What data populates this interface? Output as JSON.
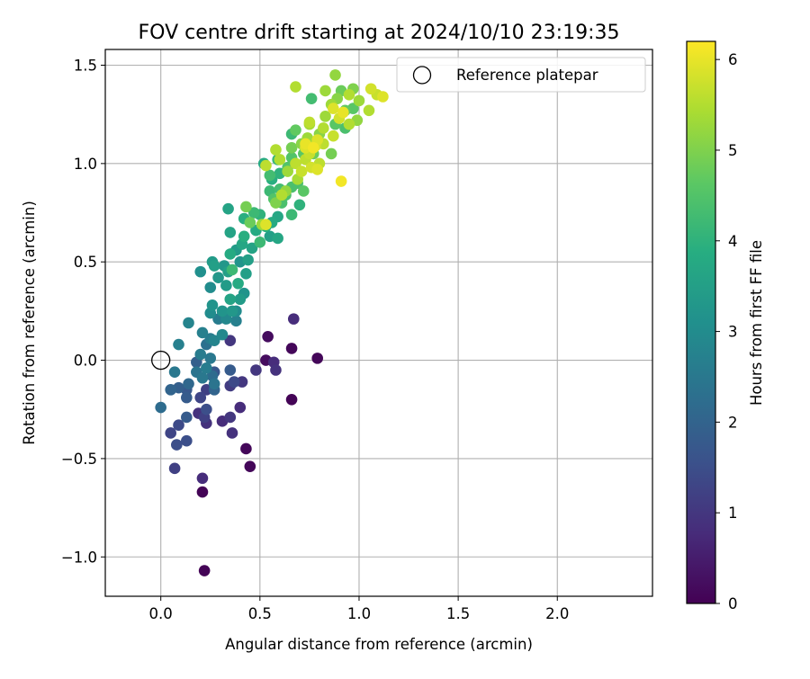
{
  "chart_data": {
    "type": "scatter",
    "title": "FOV centre drift starting at 2024/10/10 23:19:35",
    "xlabel": "Angular distance from reference (arcmin)",
    "ylabel": "Rotation from reference (arcmin)",
    "xlim": [
      -0.28,
      2.48
    ],
    "ylim": [
      -1.2,
      1.58
    ],
    "xticks": [
      0.0,
      0.5,
      1.0,
      1.5,
      2.0
    ],
    "xtick_labels": [
      "0.0",
      "0.5",
      "1.0",
      "1.5",
      "2.0"
    ],
    "yticks": [
      -1.0,
      -0.5,
      0.0,
      0.5,
      1.0,
      1.5
    ],
    "ytick_labels": [
      "−1.0",
      "−0.5",
      "0.0",
      "0.5",
      "1.0",
      "1.5"
    ],
    "grid": true,
    "legend": {
      "position": "top-right",
      "entries": [
        "Reference platepar"
      ]
    },
    "reference_point": {
      "x": 0.0,
      "y": 0.0,
      "label": "Reference platepar"
    },
    "colorbar": {
      "label": "Hours from first FF file",
      "colormap": "viridis",
      "range": [
        0,
        6.2
      ],
      "ticks": [
        0,
        1,
        2,
        3,
        4,
        5,
        6
      ],
      "tick_labels": [
        "0",
        "1",
        "2",
        "3",
        "4",
        "5",
        "6"
      ]
    },
    "points_xyc": [
      [
        0.22,
        -1.07,
        0.05
      ],
      [
        0.21,
        -0.67,
        0.05
      ],
      [
        0.21,
        -0.6,
        0.8
      ],
      [
        0.07,
        -0.55,
        1.2
      ],
      [
        0.45,
        -0.54,
        0.1
      ],
      [
        0.43,
        -0.45,
        0.1
      ],
      [
        0.08,
        -0.43,
        1.5
      ],
      [
        0.13,
        -0.41,
        1.5
      ],
      [
        0.05,
        -0.37,
        1.3
      ],
      [
        0.36,
        -0.37,
        0.9
      ],
      [
        0.09,
        -0.33,
        1.4
      ],
      [
        0.23,
        -0.32,
        0.9
      ],
      [
        0.31,
        -0.31,
        0.8
      ],
      [
        0.22,
        -0.29,
        1.2
      ],
      [
        0.35,
        -0.29,
        1.0
      ],
      [
        0.13,
        -0.29,
        1.8
      ],
      [
        0.19,
        -0.27,
        0.9
      ],
      [
        0.23,
        -0.25,
        1.5
      ],
      [
        0.4,
        -0.24,
        0.8
      ],
      [
        0.0,
        -0.24,
        2.2
      ],
      [
        0.66,
        -0.2,
        0.05
      ],
      [
        0.13,
        -0.19,
        1.8
      ],
      [
        0.2,
        -0.19,
        1.3
      ],
      [
        0.05,
        -0.15,
        2.0
      ],
      [
        0.13,
        -0.15,
        1.7
      ],
      [
        0.23,
        -0.15,
        1.2
      ],
      [
        0.27,
        -0.15,
        2.0
      ],
      [
        0.09,
        -0.14,
        1.9
      ],
      [
        0.35,
        -0.13,
        1.1
      ],
      [
        0.14,
        -0.12,
        2.1
      ],
      [
        0.27,
        -0.12,
        2.4
      ],
      [
        0.41,
        -0.11,
        1.0
      ],
      [
        0.37,
        -0.11,
        1.4
      ],
      [
        0.21,
        -0.09,
        2.5
      ],
      [
        0.26,
        -0.08,
        2.2
      ],
      [
        0.07,
        -0.06,
        2.5
      ],
      [
        0.18,
        -0.06,
        2.4
      ],
      [
        0.27,
        -0.06,
        1.7
      ],
      [
        0.35,
        -0.05,
        1.8
      ],
      [
        0.48,
        -0.05,
        1.0
      ],
      [
        0.58,
        -0.05,
        0.9
      ],
      [
        0.23,
        -0.04,
        2.6
      ],
      [
        0.57,
        -0.01,
        0.8
      ],
      [
        0.18,
        -0.01,
        1.9
      ],
      [
        0.53,
        0.0,
        0.2
      ],
      [
        0.25,
        0.01,
        2.5
      ],
      [
        0.79,
        0.01,
        0.1
      ],
      [
        0.2,
        0.03,
        2.6
      ],
      [
        0.66,
        0.06,
        0.1
      ],
      [
        0.09,
        0.08,
        2.7
      ],
      [
        0.23,
        0.08,
        2.3
      ],
      [
        0.27,
        0.1,
        2.8
      ],
      [
        0.35,
        0.1,
        1.0
      ],
      [
        0.54,
        0.12,
        0.2
      ],
      [
        0.25,
        0.11,
        2.6
      ],
      [
        0.31,
        0.13,
        2.9
      ],
      [
        0.21,
        0.14,
        2.7
      ],
      [
        0.14,
        0.19,
        2.8
      ],
      [
        0.67,
        0.21,
        0.8
      ],
      [
        0.29,
        0.21,
        2.6
      ],
      [
        0.33,
        0.21,
        2.9
      ],
      [
        0.38,
        0.2,
        2.7
      ],
      [
        0.25,
        0.24,
        3.0
      ],
      [
        0.31,
        0.25,
        3.2
      ],
      [
        0.38,
        0.25,
        3.0
      ],
      [
        0.26,
        0.28,
        3.2
      ],
      [
        0.36,
        0.25,
        3.3
      ],
      [
        0.4,
        0.31,
        3.4
      ],
      [
        0.35,
        0.31,
        3.6
      ],
      [
        0.42,
        0.34,
        3.2
      ],
      [
        0.25,
        0.37,
        3.0
      ],
      [
        0.33,
        0.38,
        3.4
      ],
      [
        0.39,
        0.39,
        3.8
      ],
      [
        0.29,
        0.42,
        3.3
      ],
      [
        0.2,
        0.45,
        3.1
      ],
      [
        0.34,
        0.45,
        3.5
      ],
      [
        0.43,
        0.44,
        3.5
      ],
      [
        0.36,
        0.46,
        4.2
      ],
      [
        0.27,
        0.48,
        3.5
      ],
      [
        0.32,
        0.48,
        3.3
      ],
      [
        0.26,
        0.5,
        3.4
      ],
      [
        0.4,
        0.5,
        3.2
      ],
      [
        0.44,
        0.51,
        3.5
      ],
      [
        0.35,
        0.54,
        3.8
      ],
      [
        0.38,
        0.56,
        3.4
      ],
      [
        0.46,
        0.57,
        3.6
      ],
      [
        0.41,
        0.59,
        3.7
      ],
      [
        0.5,
        0.6,
        4.2
      ],
      [
        0.55,
        0.63,
        3.5
      ],
      [
        0.42,
        0.63,
        3.9
      ],
      [
        0.59,
        0.62,
        3.7
      ],
      [
        0.35,
        0.65,
        3.6
      ],
      [
        0.48,
        0.66,
        3.8
      ],
      [
        0.53,
        0.68,
        3.9
      ],
      [
        0.56,
        0.7,
        3.8
      ],
      [
        0.45,
        0.7,
        4.8
      ],
      [
        0.42,
        0.72,
        3.9
      ],
      [
        0.59,
        0.73,
        3.7
      ],
      [
        0.5,
        0.74,
        4.0
      ],
      [
        0.66,
        0.74,
        4.2
      ],
      [
        0.47,
        0.75,
        4.2
      ],
      [
        0.34,
        0.77,
        3.6
      ],
      [
        0.43,
        0.78,
        4.9
      ],
      [
        0.7,
        0.79,
        4.0
      ],
      [
        0.61,
        0.8,
        4.4
      ],
      [
        0.57,
        0.82,
        4.5
      ],
      [
        0.63,
        0.84,
        4.4
      ],
      [
        0.55,
        0.86,
        4.2
      ],
      [
        0.72,
        0.86,
        4.6
      ],
      [
        0.6,
        0.87,
        4.3
      ],
      [
        0.66,
        0.88,
        4.4
      ],
      [
        0.69,
        0.9,
        4.4
      ],
      [
        0.56,
        0.92,
        3.9
      ],
      [
        0.55,
        0.94,
        4.3
      ],
      [
        0.6,
        0.95,
        4.0
      ],
      [
        0.64,
        0.98,
        4.5
      ],
      [
        0.52,
        1.0,
        3.8
      ],
      [
        0.59,
        1.02,
        4.1
      ],
      [
        0.66,
        1.03,
        4.5
      ],
      [
        0.72,
        1.05,
        4.6
      ],
      [
        0.77,
        1.05,
        4.8
      ],
      [
        0.86,
        1.05,
        4.9
      ],
      [
        0.66,
        1.08,
        4.9
      ],
      [
        0.71,
        1.1,
        5.1
      ],
      [
        0.74,
        1.13,
        5.3
      ],
      [
        0.66,
        1.15,
        4.2
      ],
      [
        0.68,
        1.17,
        4.7
      ],
      [
        0.8,
        1.15,
        5.1
      ],
      [
        0.75,
        1.2,
        5.4
      ],
      [
        0.88,
        1.2,
        4.6
      ],
      [
        0.83,
        1.24,
        5.3
      ],
      [
        0.93,
        1.27,
        4.7
      ],
      [
        0.86,
        1.3,
        5.3
      ],
      [
        0.97,
        1.28,
        4.6
      ],
      [
        0.89,
        1.33,
        5.1
      ],
      [
        0.95,
        1.35,
        5.5
      ],
      [
        0.83,
        1.37,
        5.3
      ],
      [
        0.91,
        1.37,
        4.8
      ],
      [
        0.97,
        1.38,
        5.0
      ],
      [
        0.88,
        1.45,
        5.2
      ],
      [
        0.68,
        1.39,
        5.5
      ],
      [
        0.76,
        1.33,
        4.3
      ],
      [
        1.0,
        1.32,
        5.3
      ],
      [
        1.06,
        1.38,
        5.8
      ],
      [
        1.09,
        1.35,
        5.7
      ],
      [
        1.12,
        1.34,
        5.9
      ],
      [
        1.05,
        1.27,
        5.5
      ],
      [
        0.99,
        1.22,
        5.2
      ],
      [
        0.93,
        1.18,
        4.4
      ],
      [
        0.95,
        1.2,
        5.5
      ],
      [
        0.9,
        1.23,
        5.8
      ],
      [
        0.92,
        1.26,
        6.0
      ],
      [
        0.87,
        1.28,
        5.9
      ],
      [
        0.87,
        1.14,
        5.7
      ],
      [
        0.82,
        1.1,
        5.6
      ],
      [
        0.78,
        1.09,
        5.8
      ],
      [
        0.73,
        1.08,
        5.9
      ],
      [
        0.75,
        1.05,
        5.7
      ],
      [
        0.8,
        1.0,
        5.6
      ],
      [
        0.76,
        0.98,
        5.8
      ],
      [
        0.71,
        0.96,
        5.7
      ],
      [
        0.79,
        0.97,
        5.9
      ],
      [
        0.73,
        1.02,
        5.6
      ],
      [
        0.6,
        1.02,
        5.5
      ],
      [
        0.68,
        1.0,
        5.6
      ],
      [
        0.64,
        0.96,
        5.3
      ],
      [
        0.53,
        0.99,
        5.6
      ],
      [
        0.58,
        1.07,
        5.5
      ],
      [
        0.69,
        0.92,
        5.4
      ],
      [
        0.63,
        0.86,
        5.2
      ],
      [
        0.61,
        0.84,
        5.5
      ],
      [
        0.58,
        0.8,
        5.0
      ],
      [
        0.51,
        0.69,
        5.3
      ],
      [
        0.53,
        0.69,
        5.9
      ],
      [
        0.91,
        0.91,
        6.1
      ],
      [
        0.75,
        1.21,
        5.6
      ],
      [
        0.82,
        1.18,
        5.5
      ],
      [
        0.79,
        1.12,
        5.9
      ],
      [
        0.77,
        1.08,
        6.1
      ],
      [
        0.73,
        1.1,
        6.0
      ]
    ]
  }
}
